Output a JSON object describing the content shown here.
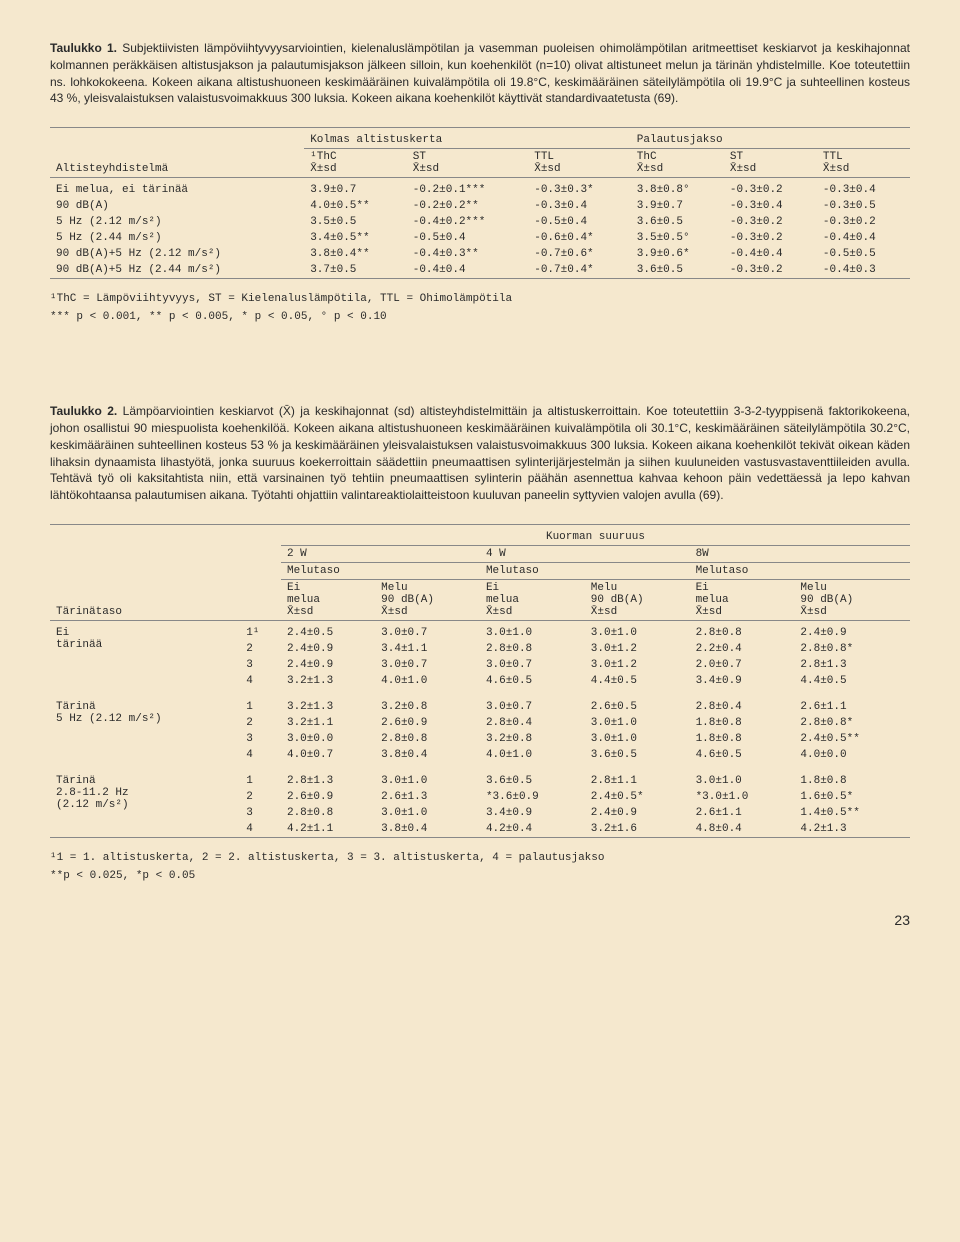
{
  "page_number": "23",
  "table1": {
    "caption_title": "Taulukko 1.",
    "caption_body": "Subjektiivisten lämpöviihtyvyysarviointien, kielenaluslämpötilan ja vasemman puoleisen ohimolämpötilan aritmeettiset keskiarvot ja keskihajonnat kolmannen peräkkäisen altistusjakson ja palautumisjakson jälkeen silloin, kun koehenkilöt (n=10) olivat altistuneet melun ja tärinän yhdistelmille. Koe toteutettiin ns. lohkokokeena. Kokeen aikana altistushuoneen keskimääräinen kuivalämpötila oli 19.8°C, keskimääräinen säteilylämpötila oli 19.9°C ja suhteellinen kosteus 43 %, yleisvalaistuksen valaistusvoimakkuus 300 luksia. Kokeen aikana koehenkilöt käyttivät standardivaatetusta (69).",
    "group_headers": [
      "Kolmas altistuskerta",
      "Palautusjakso"
    ],
    "row_label_header": "Altisteyhdistelmä",
    "col_headers": [
      "¹ThC\nX̄±sd",
      "ST\nX̄±sd",
      "TTL\nX̄±sd",
      "ThC\nX̄±sd",
      "ST\nX̄±sd",
      "TTL\nX̄±sd"
    ],
    "rows": [
      {
        "label": "Ei melua, ei tärinää",
        "cells": [
          "3.9±0.7",
          "-0.2±0.1***",
          "-0.3±0.3*",
          "3.8±0.8°",
          "-0.3±0.2",
          "-0.3±0.4"
        ]
      },
      {
        "label": "90 dB(A)",
        "cells": [
          "4.0±0.5**",
          "-0.2±0.2**",
          "-0.3±0.4",
          "3.9±0.7",
          "-0.3±0.4",
          "-0.3±0.5"
        ]
      },
      {
        "label": "5 Hz (2.12 m/s²)",
        "cells": [
          "3.5±0.5",
          "-0.4±0.2***",
          "-0.5±0.4",
          "3.6±0.5",
          "-0.3±0.2",
          "-0.3±0.2"
        ]
      },
      {
        "label": "5 Hz (2.44 m/s²)",
        "cells": [
          "3.4±0.5**",
          "-0.5±0.4",
          "-0.6±0.4*",
          "3.5±0.5°",
          "-0.3±0.2",
          "-0.4±0.4"
        ]
      },
      {
        "label": "90 dB(A)+5 Hz (2.12 m/s²)",
        "cells": [
          "3.8±0.4**",
          "-0.4±0.3**",
          "-0.7±0.6*",
          "3.9±0.6*",
          "-0.4±0.4",
          "-0.5±0.5"
        ]
      },
      {
        "label": "90 dB(A)+5 Hz (2.44 m/s²)",
        "cells": [
          "3.7±0.5",
          "-0.4±0.4",
          "-0.7±0.4*",
          "3.6±0.5",
          "-0.3±0.2",
          "-0.4±0.3"
        ]
      }
    ],
    "footnote1": "¹ThC = Lämpöviihtyvyys, ST = Kielenaluslämpötila, TTL = Ohimolämpötila",
    "footnote2": "*** p < 0.001, ** p < 0.005, * p < 0.05, ° p < 0.10"
  },
  "table2": {
    "caption_title": "Taulukko 2.",
    "caption_body": "Lämpöarviointien keskiarvot (X̄) ja keskihajonnat (sd) altisteyhdistelmittäin ja altistuskerroittain. Koe toteutettiin 3-3-2-tyyppisenä faktorikokeena, johon osallistui 90 miespuolista koehenkilöä. Kokeen aikana altistushuoneen keskimääräinen kuivalämpötila oli 30.1°C, keskimääräinen säteilylämpötila 30.2°C, keskimääräinen suhteellinen kosteus 53 % ja keskimääräinen yleisvalaistuksen valaistusvoimakkuus 300 luksia. Kokeen aikana koehenkilöt tekivät oikean käden lihaksin dynaamista lihastyötä, jonka suuruus koekerroittain säädettiin pneumaattisen sylinterijärjestelmän ja siihen kuuluneiden vastusvastaventtiileiden avulla. Tehtävä työ oli kaksitahtista niin, että varsinainen työ tehtiin pneumaattisen sylinterin päähän asennettua kahvaa kehoon päin vedettäessä ja lepo kahvan lähtökohtaansa palautumisen aikana. Työtahti ohjattiin valintareaktiolaitteistoon kuuluvan paneelin syttyvien valojen avulla (69).",
    "super_header": "Kuorman suuruus",
    "load_headers": [
      "2 W",
      "4 W",
      "8W"
    ],
    "melutaso_label": "Melutaso",
    "row_label_header": "Tärinätaso",
    "sub_headers_pair": [
      "Ei\nmelua\nX̄±sd",
      "Melu\n90 dB(A)\nX̄±sd"
    ],
    "blocks": [
      {
        "label": "Ei\ntärinää",
        "rows": [
          {
            "n": "1¹",
            "cells": [
              "2.4±0.5",
              "3.0±0.7",
              "3.0±1.0",
              "3.0±1.0",
              "2.8±0.8",
              "2.4±0.9"
            ]
          },
          {
            "n": "2",
            "cells": [
              "2.4±0.9",
              "3.4±1.1",
              "2.8±0.8",
              "3.0±1.2",
              "2.2±0.4",
              "2.8±0.8*"
            ]
          },
          {
            "n": "3",
            "cells": [
              "2.4±0.9",
              "3.0±0.7",
              "3.0±0.7",
              "3.0±1.2",
              "2.0±0.7",
              "2.8±1.3"
            ]
          },
          {
            "n": "4",
            "cells": [
              "3.2±1.3",
              "4.0±1.0",
              "4.6±0.5",
              "4.4±0.5",
              "3.4±0.9",
              "4.4±0.5"
            ]
          }
        ]
      },
      {
        "label": "Tärinä\n5 Hz (2.12 m/s²)",
        "rows": [
          {
            "n": "1",
            "cells": [
              "3.2±1.3",
              "3.2±0.8",
              "3.0±0.7",
              "2.6±0.5",
              "2.8±0.4",
              "2.6±1.1"
            ]
          },
          {
            "n": "2",
            "cells": [
              "3.2±1.1",
              "2.6±0.9",
              "2.8±0.4",
              "3.0±1.0",
              "1.8±0.8",
              "2.8±0.8*"
            ]
          },
          {
            "n": "3",
            "cells": [
              "3.0±0.0",
              "2.8±0.8",
              "3.2±0.8",
              "3.0±1.0",
              "1.8±0.8",
              "2.4±0.5**"
            ]
          },
          {
            "n": "4",
            "cells": [
              "4.0±0.7",
              "3.8±0.4",
              "4.0±1.0",
              "3.6±0.5",
              "4.6±0.5",
              "4.0±0.0"
            ]
          }
        ]
      },
      {
        "label": "Tärinä\n2.8-11.2 Hz\n(2.12 m/s²)",
        "rows": [
          {
            "n": "1",
            "cells": [
              "2.8±1.3",
              "3.0±1.0",
              "3.6±0.5",
              "2.8±1.1",
              "3.0±1.0",
              "1.8±0.8"
            ]
          },
          {
            "n": "2",
            "cells": [
              "2.6±0.9",
              "2.6±1.3",
              "*3.6±0.9",
              "2.4±0.5*",
              "*3.0±1.0",
              "1.6±0.5*"
            ]
          },
          {
            "n": "3",
            "cells": [
              "2.8±0.8",
              "3.0±1.0",
              "3.4±0.9",
              "2.4±0.9",
              "2.6±1.1",
              "1.4±0.5**"
            ]
          },
          {
            "n": "4",
            "cells": [
              "4.2±1.1",
              "3.8±0.4",
              "4.2±0.4",
              "3.2±1.6",
              "4.8±0.4",
              "4.2±1.3"
            ]
          }
        ]
      }
    ],
    "footnote1": "¹1 = 1. altistuskerta, 2 = 2. altistuskerta, 3 = 3. altistuskerta, 4 = palautusjakso",
    "footnote2": "**p < 0.025, *p < 0.05"
  }
}
